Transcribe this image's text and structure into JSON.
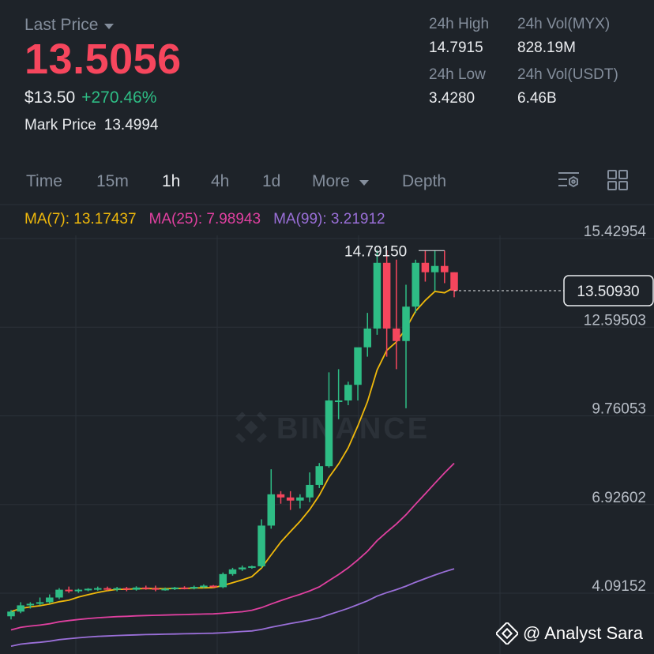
{
  "header": {
    "last_price_label": "Last Price",
    "last_price": "13.5056",
    "usd_price": "$13.50",
    "change_pct": "+270.46%",
    "mark_price_label": "Mark Price",
    "mark_price": "13.4994"
  },
  "stats": {
    "high_label": "24h High",
    "high": "14.7915",
    "low_label": "24h Low",
    "low": "3.4280",
    "vol_base_label": "24h Vol(MYX)",
    "vol_base": "828.19M",
    "vol_quote_label": "24h Vol(USDT)",
    "vol_quote": "6.46B"
  },
  "tabs": {
    "time": "Time",
    "m15": "15m",
    "h1": "1h",
    "h4": "4h",
    "d1": "1d",
    "more": "More",
    "depth": "Depth"
  },
  "ma": {
    "ma7": "MA(7): 13.17437",
    "ma25": "MA(25): 7.98943",
    "ma99": "MA(99): 3.21912"
  },
  "watermark_text": "@ Analyst Sara",
  "chart_data": {
    "type": "candlestick",
    "timeframe": "1h",
    "y_ticks": [
      15.42954,
      12.59503,
      9.76053,
      6.92602,
      4.09152
    ],
    "high_annotation": "14.79150",
    "current_price_label": "13.50930",
    "current_price": 13.5093,
    "up_color": "#2ebd85",
    "down_color": "#f6465d",
    "candles": [
      [
        3.1,
        3.3,
        3.0,
        3.25
      ],
      [
        3.25,
        3.55,
        3.2,
        3.45
      ],
      [
        3.45,
        3.55,
        3.35,
        3.5
      ],
      [
        3.5,
        3.7,
        3.45,
        3.55
      ],
      [
        3.55,
        3.8,
        3.5,
        3.7
      ],
      [
        3.7,
        4.0,
        3.65,
        3.95
      ],
      [
        3.95,
        4.05,
        3.85,
        3.9
      ],
      [
        3.9,
        3.98,
        3.85,
        3.95
      ],
      [
        3.95,
        4.0,
        3.9,
        3.98
      ],
      [
        3.98,
        4.05,
        3.92,
        4.0
      ],
      [
        4.0,
        4.05,
        3.92,
        3.96
      ],
      [
        3.96,
        4.04,
        3.9,
        4.0
      ],
      [
        4.0,
        4.04,
        3.9,
        3.95
      ],
      [
        3.95,
        4.06,
        3.92,
        4.02
      ],
      [
        4.02,
        4.08,
        3.95,
        4.0
      ],
      [
        4.0,
        4.08,
        3.9,
        3.96
      ],
      [
        3.96,
        4.02,
        3.92,
        3.98
      ],
      [
        3.98,
        4.04,
        3.94,
        4.02
      ],
      [
        4.02,
        4.06,
        3.96,
        4.0
      ],
      [
        4.0,
        4.08,
        3.96,
        4.04
      ],
      [
        4.04,
        4.12,
        4.0,
        4.08
      ],
      [
        4.08,
        4.1,
        4.0,
        4.03
      ],
      [
        4.03,
        4.5,
        4.0,
        4.45
      ],
      [
        4.45,
        4.65,
        4.4,
        4.6
      ],
      [
        4.6,
        4.72,
        4.55,
        4.66
      ],
      [
        4.66,
        4.72,
        4.62,
        4.7
      ],
      [
        4.7,
        6.2,
        4.65,
        6.0
      ],
      [
        6.0,
        7.8,
        5.9,
        7.0
      ],
      [
        7.0,
        7.1,
        6.7,
        6.9
      ],
      [
        6.9,
        7.1,
        6.5,
        6.8
      ],
      [
        6.8,
        7.0,
        6.55,
        6.9
      ],
      [
        6.9,
        7.7,
        6.75,
        7.3
      ],
      [
        7.3,
        8.0,
        7.2,
        7.9
      ],
      [
        7.9,
        10.9,
        7.85,
        10.0
      ],
      [
        10.0,
        11.0,
        9.4,
        10.0
      ],
      [
        10.0,
        10.6,
        9.85,
        10.5
      ],
      [
        10.5,
        11.6,
        10.0,
        11.7
      ],
      [
        11.7,
        12.8,
        11.4,
        12.3
      ],
      [
        12.3,
        14.8,
        12.1,
        14.4
      ],
      [
        14.4,
        14.8,
        11.4,
        12.3
      ],
      [
        12.3,
        14.5,
        11.0,
        11.9
      ],
      [
        11.9,
        13.7,
        9.75,
        13.0
      ],
      [
        13.0,
        14.5,
        12.8,
        14.4
      ],
      [
        14.4,
        14.8,
        13.8,
        14.1
      ],
      [
        14.1,
        14.8,
        13.5,
        14.3
      ],
      [
        14.3,
        14.79,
        13.75,
        14.1
      ],
      [
        14.1,
        14.1,
        13.3,
        13.51
      ]
    ]
  }
}
